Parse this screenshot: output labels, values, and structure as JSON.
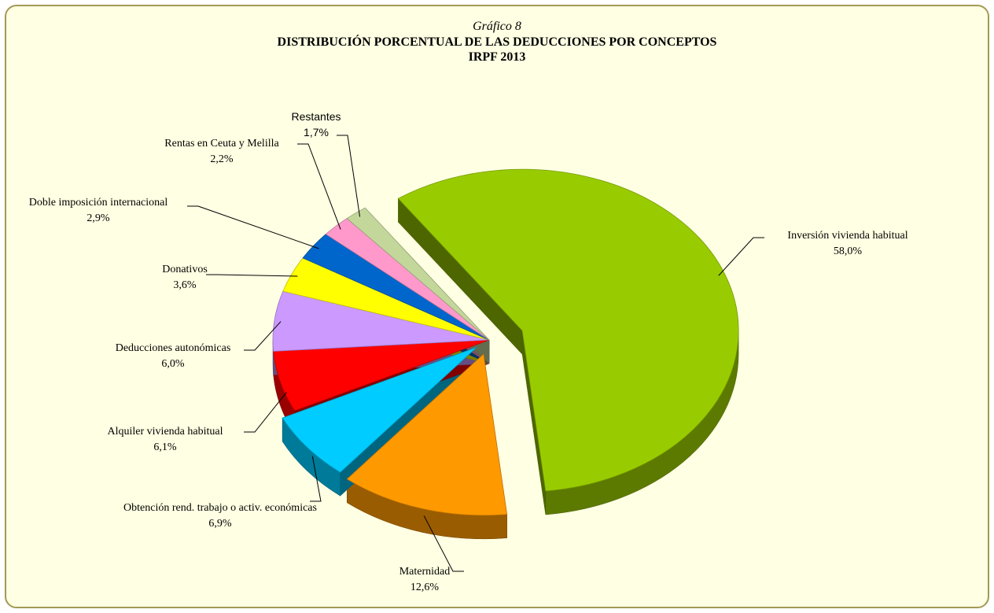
{
  "chart_data": {
    "type": "pie",
    "caption": "Gráfico 8",
    "title": "DISTRIBUCIÓN PORCENTUAL DE LAS DEDUCCIONES POR CONCEPTOS",
    "subtitle": "IRPF 2013",
    "categories": [
      "Inversión vivienda habitual",
      "Maternidad",
      "Obtención rend. trabajo o activ. económicas",
      "Alquiler vivienda habitual",
      "Deducciones autonómicas",
      "Donativos",
      "Doble imposición internacional",
      "Rentas en Ceuta y Melilla",
      "Restantes"
    ],
    "values": [
      58.0,
      12.6,
      6.9,
      6.1,
      6.0,
      3.6,
      2.9,
      2.2,
      1.7
    ],
    "value_labels": [
      "58,0%",
      "12,6%",
      "6,9%",
      "6,1%",
      "6,0%",
      "3,6%",
      "2,9%",
      "2,2%",
      "1,7%"
    ],
    "colors": [
      "#99cc00",
      "#ff9900",
      "#00ccff",
      "#ff0000",
      "#cc99ff",
      "#ffff00",
      "#0066cc",
      "#ff99cc",
      "#c4d79b"
    ]
  }
}
